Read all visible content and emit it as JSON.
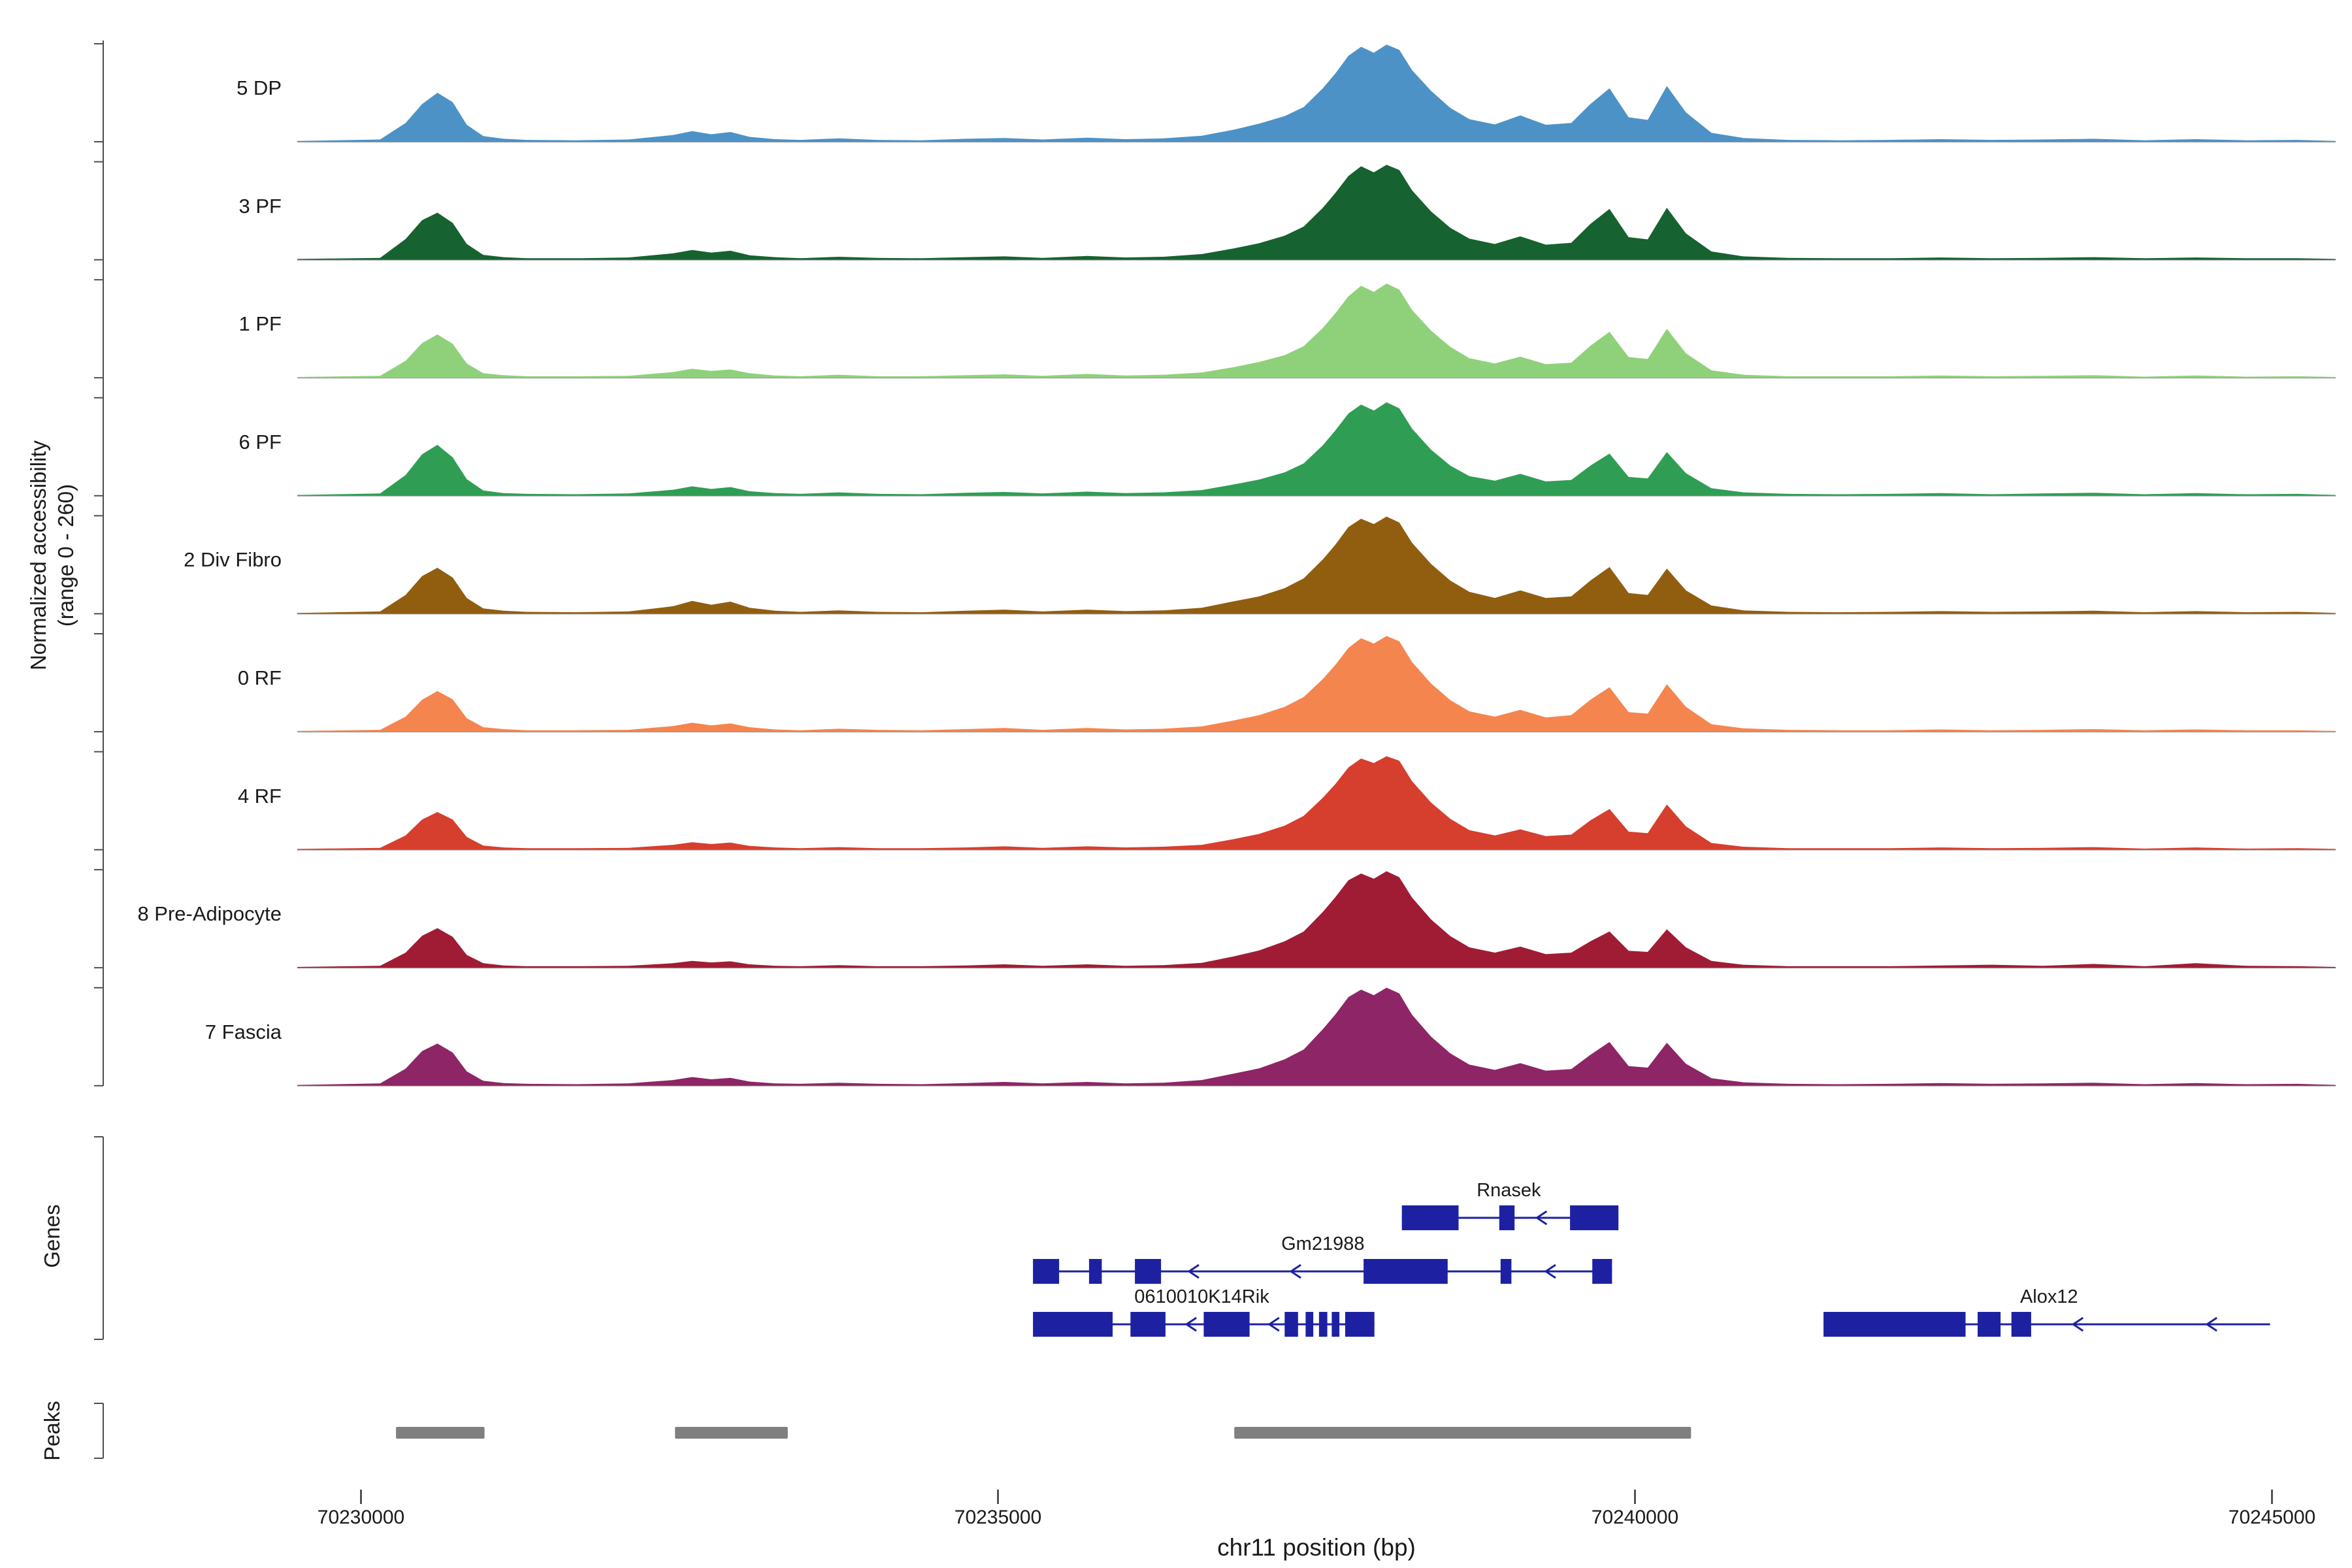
{
  "figure": {
    "y_axis_label_line1": "Normalized accessibility",
    "y_axis_label_line2": "(range 0 - 260)",
    "x_axis_label": "chr11 position (bp)",
    "genes_section_label": "Genes",
    "peaks_section_label": "Peaks",
    "background_color": "#ffffff",
    "gene_color": "#1d21a1",
    "peak_bar_color": "#7f7f7f",
    "baseline_color": "#9a9a9a",
    "axis_color": "#4d4d4d",
    "text_color": "#1a1a1a"
  },
  "chart_data": {
    "type": "area",
    "title": "",
    "xlabel": "chr11 position (bp)",
    "ylabel": "Normalized accessibility (range 0 - 260)",
    "chromosome": "chr11",
    "x_range_bp": [
      70229500,
      70245500
    ],
    "y_range": [
      0,
      260
    ],
    "legend": "none",
    "grid": false,
    "x_ticks": [
      {
        "bp": 70230000,
        "label": "70230000"
      },
      {
        "bp": 70235000,
        "label": "70235000"
      },
      {
        "bp": 70240000,
        "label": "70240000"
      },
      {
        "bp": 70245000,
        "label": "70245000"
      }
    ],
    "x_bp": [
      70229500,
      70230150,
      70230350,
      70230480,
      70230600,
      70230720,
      70230830,
      70230960,
      70231120,
      70231300,
      70231700,
      70232100,
      70232450,
      70232600,
      70232750,
      70232900,
      70233050,
      70233250,
      70233450,
      70233750,
      70234050,
      70234400,
      70234750,
      70235050,
      70235350,
      70235700,
      70236000,
      70236300,
      70236600,
      70236850,
      70237050,
      70237250,
      70237400,
      70237550,
      70237650,
      70237750,
      70237850,
      70237950,
      70238050,
      70238150,
      70238250,
      70238400,
      70238550,
      70238700,
      70238900,
      70239100,
      70239300,
      70239500,
      70239650,
      70239800,
      70239950,
      70240100,
      70240250,
      70240400,
      70240600,
      70240850,
      70241200,
      70241600,
      70242000,
      70242400,
      70242800,
      70243200,
      70243600,
      70244000,
      70244400,
      70244800,
      70245200,
      70245500
    ],
    "tracks": [
      {
        "label": "5 DP",
        "color": "#4c92c6",
        "values": [
          2,
          6,
          50,
          100,
          130,
          105,
          45,
          15,
          8,
          5,
          4,
          6,
          18,
          28,
          20,
          26,
          13,
          7,
          5,
          9,
          5,
          4,
          8,
          10,
          6,
          11,
          7,
          9,
          16,
          32,
          48,
          68,
          92,
          142,
          182,
          228,
          252,
          236,
          258,
          244,
          190,
          135,
          90,
          60,
          46,
          70,
          45,
          50,
          100,
          142,
          65,
          58,
          148,
          78,
          24,
          10,
          5,
          4,
          5,
          7,
          5,
          6,
          8,
          4,
          7,
          4,
          5,
          2
        ]
      },
      {
        "label": "3 PF",
        "color": "#166230",
        "values": [
          2,
          5,
          55,
          105,
          125,
          98,
          42,
          13,
          7,
          4,
          4,
          6,
          17,
          26,
          19,
          24,
          12,
          7,
          4,
          8,
          5,
          4,
          7,
          9,
          5,
          10,
          6,
          8,
          15,
          30,
          44,
          64,
          88,
          138,
          178,
          222,
          248,
          232,
          252,
          238,
          184,
          128,
          85,
          56,
          42,
          62,
          40,
          45,
          95,
          135,
          60,
          54,
          138,
          70,
          22,
          9,
          5,
          4,
          4,
          6,
          4,
          5,
          7,
          4,
          6,
          4,
          4,
          2
        ]
      },
      {
        "label": "1 PF",
        "color": "#8fd17a",
        "values": [
          2,
          5,
          45,
          92,
          115,
          90,
          38,
          12,
          7,
          4,
          4,
          5,
          15,
          24,
          18,
          22,
          12,
          6,
          4,
          8,
          4,
          4,
          7,
          9,
          5,
          10,
          6,
          8,
          14,
          28,
          42,
          60,
          84,
          132,
          172,
          216,
          244,
          228,
          250,
          234,
          180,
          125,
          82,
          52,
          38,
          56,
          36,
          40,
          85,
          122,
          55,
          50,
          130,
          65,
          20,
          8,
          4,
          4,
          4,
          6,
          4,
          5,
          7,
          3,
          6,
          3,
          4,
          2
        ]
      },
      {
        "label": "6 PF",
        "color": "#2f9e54",
        "values": [
          2,
          6,
          55,
          110,
          135,
          102,
          44,
          14,
          7,
          5,
          4,
          6,
          16,
          25,
          18,
          23,
          12,
          7,
          5,
          9,
          5,
          4,
          8,
          10,
          6,
          11,
          7,
          9,
          15,
          30,
          43,
          62,
          86,
          134,
          174,
          218,
          242,
          226,
          248,
          232,
          178,
          122,
          80,
          52,
          40,
          58,
          38,
          42,
          80,
          112,
          50,
          46,
          116,
          60,
          20,
          9,
          5,
          4,
          5,
          7,
          4,
          6,
          8,
          4,
          7,
          4,
          5,
          2
        ]
      },
      {
        "label": "2 Div Fibro",
        "color": "#915e10",
        "values": [
          2,
          6,
          50,
          100,
          122,
          96,
          42,
          14,
          8,
          5,
          4,
          6,
          20,
          34,
          24,
          32,
          16,
          8,
          5,
          9,
          5,
          4,
          8,
          11,
          6,
          11,
          7,
          9,
          16,
          33,
          46,
          68,
          94,
          144,
          184,
          230,
          252,
          238,
          258,
          242,
          188,
          132,
          88,
          58,
          42,
          62,
          42,
          46,
          88,
          124,
          55,
          50,
          120,
          62,
          22,
          9,
          5,
          4,
          5,
          7,
          5,
          6,
          8,
          4,
          7,
          4,
          5,
          2
        ]
      },
      {
        "label": "0 RF",
        "color": "#f5854f",
        "values": [
          2,
          5,
          40,
          85,
          108,
          86,
          36,
          12,
          7,
          4,
          4,
          5,
          15,
          24,
          17,
          22,
          12,
          6,
          4,
          8,
          5,
          4,
          7,
          10,
          5,
          10,
          6,
          8,
          14,
          30,
          44,
          66,
          92,
          140,
          178,
          222,
          248,
          234,
          254,
          240,
          185,
          128,
          84,
          54,
          40,
          58,
          38,
          44,
          85,
          118,
          52,
          48,
          126,
          66,
          20,
          9,
          5,
          4,
          4,
          6,
          4,
          5,
          7,
          4,
          6,
          4,
          4,
          2
        ]
      },
      {
        "label": "4 RF",
        "color": "#d63e2e",
        "values": [
          2,
          5,
          38,
          80,
          100,
          80,
          34,
          11,
          6,
          4,
          4,
          5,
          13,
          20,
          15,
          19,
          10,
          6,
          4,
          7,
          4,
          4,
          6,
          9,
          5,
          9,
          6,
          8,
          13,
          28,
          42,
          64,
          90,
          138,
          175,
          218,
          242,
          230,
          248,
          236,
          182,
          125,
          82,
          52,
          38,
          54,
          36,
          40,
          78,
          108,
          48,
          44,
          120,
          62,
          18,
          8,
          4,
          4,
          4,
          6,
          4,
          5,
          7,
          3,
          6,
          3,
          4,
          2
        ]
      },
      {
        "label": "8 Pre-Adipocyte",
        "color": "#a01c34",
        "values": [
          2,
          5,
          40,
          85,
          105,
          82,
          34,
          12,
          6,
          4,
          4,
          5,
          12,
          18,
          14,
          17,
          9,
          5,
          4,
          7,
          4,
          4,
          6,
          9,
          5,
          9,
          5,
          7,
          13,
          30,
          46,
          70,
          96,
          148,
          188,
          232,
          250,
          236,
          256,
          240,
          186,
          128,
          84,
          54,
          40,
          56,
          36,
          40,
          70,
          96,
          45,
          42,
          102,
          54,
          18,
          8,
          4,
          4,
          4,
          6,
          8,
          5,
          10,
          4,
          12,
          5,
          4,
          2
        ]
      },
      {
        "label": "7 Fascia",
        "color": "#8e2566",
        "values": [
          2,
          6,
          45,
          92,
          112,
          88,
          38,
          13,
          7,
          5,
          4,
          6,
          15,
          23,
          17,
          21,
          11,
          6,
          5,
          8,
          5,
          4,
          7,
          10,
          6,
          10,
          6,
          8,
          15,
          32,
          46,
          70,
          96,
          150,
          190,
          235,
          255,
          240,
          260,
          245,
          188,
          130,
          86,
          56,
          42,
          60,
          40,
          44,
          82,
          116,
          52,
          48,
          114,
          58,
          20,
          9,
          5,
          4,
          5,
          7,
          5,
          6,
          8,
          4,
          7,
          4,
          5,
          2
        ]
      }
    ],
    "genes": [
      {
        "name": "Rnasek",
        "strand": "-",
        "row": 0,
        "start": 70238170,
        "end": 70239870,
        "exons": [
          [
            70238170,
            70238615
          ],
          [
            70238935,
            70239055
          ],
          [
            70239490,
            70239870
          ]
        ],
        "arrows": [
          70239230
        ],
        "label_bp": 70239010
      },
      {
        "name": "Gm21988",
        "strand": "-",
        "row": 1,
        "start": 70235275,
        "end": 70239820,
        "exons": [
          [
            70235275,
            70235480
          ],
          [
            70235715,
            70235815
          ],
          [
            70236075,
            70236280
          ],
          [
            70237870,
            70238530
          ],
          [
            70238945,
            70239030
          ],
          [
            70239665,
            70239820
          ]
        ],
        "arrows": [
          70236500,
          70237300,
          70239300
        ],
        "label_bp": 70237550
      },
      {
        "name": "0610010K14Rik",
        "strand": "-",
        "row": 2,
        "start": 70235275,
        "end": 70237955,
        "exons": [
          [
            70235275,
            70235900
          ],
          [
            70236040,
            70236315
          ],
          [
            70236615,
            70236975
          ],
          [
            70237250,
            70237355
          ],
          [
            70237415,
            70237475
          ],
          [
            70237520,
            70237585
          ],
          [
            70237620,
            70237680
          ],
          [
            70237725,
            70237955
          ]
        ],
        "arrows": [
          70236480,
          70237130
        ],
        "label_bp": 70236600
      },
      {
        "name": "Alox12",
        "strand": "-",
        "row": 2,
        "start": 70241480,
        "end": 70244985,
        "exons": [
          [
            70241480,
            70242595
          ],
          [
            70242690,
            70242870
          ],
          [
            70242955,
            70243110
          ]
        ],
        "arrows": [
          70243440,
          70244490
        ],
        "label_bp": 70243250
      }
    ],
    "peaks": [
      {
        "start": 70230275,
        "end": 70230970
      },
      {
        "start": 70232465,
        "end": 70233350
      },
      {
        "start": 70236855,
        "end": 70240440
      }
    ]
  }
}
